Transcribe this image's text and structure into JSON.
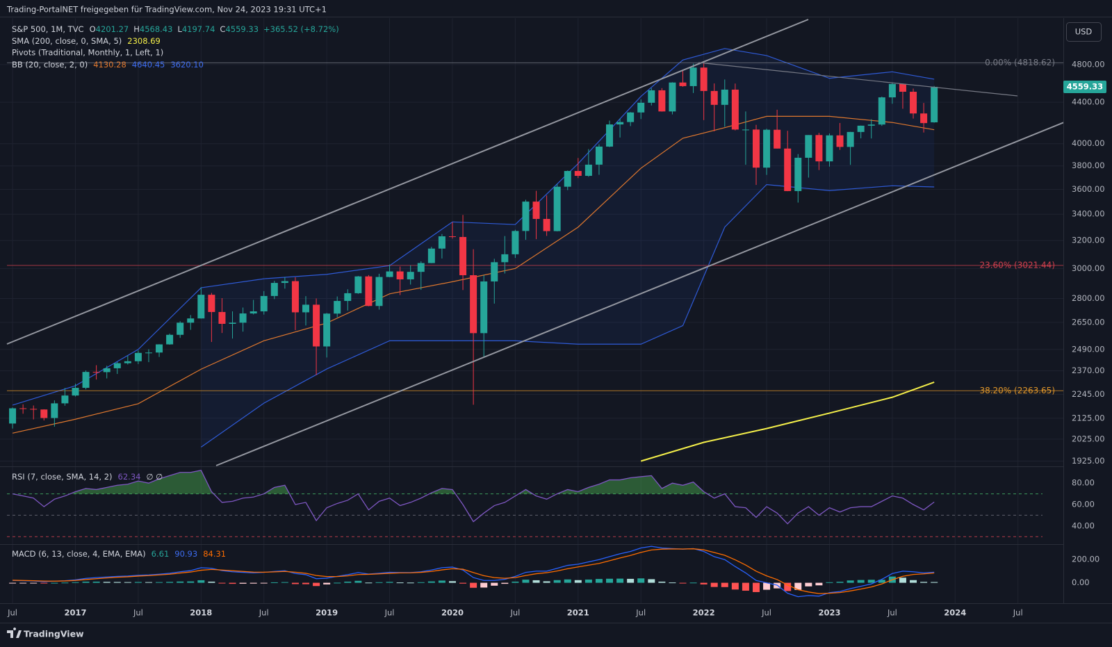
{
  "header": "Trading-PortalNET freigegeben für TradingView.com, Nov 24, 2023 19:31 UTC+1",
  "currency_button": "USD",
  "footer_logo": "TradingView",
  "chart_data": [
    {
      "type": "candlestick",
      "symbol": "S&P 500, 1M, TVC",
      "ohlc_labels": [
        "O",
        "H",
        "L",
        "C"
      ],
      "change": "+365.52 (+8.72%)",
      "up_color": "#26a69a",
      "down_color": "#f23645",
      "yscale": "log",
      "ylim": [
        1902,
        5342
      ],
      "xlim": [
        "2016-06",
        "2024-11"
      ],
      "grid": true,
      "yticks": [
        {
          "value": 4800,
          "label": "4800.00"
        },
        {
          "value": 4400,
          "label": "4400.00"
        },
        {
          "value": 4000,
          "label": "4000.00"
        },
        {
          "value": 3800,
          "label": "3800.00"
        },
        {
          "value": 3600,
          "label": "3600.00"
        },
        {
          "value": 3400,
          "label": "3400.00"
        },
        {
          "value": 3200,
          "label": "3200.00"
        },
        {
          "value": 3000,
          "label": "3000.00"
        },
        {
          "value": 2800,
          "label": "2800.00"
        },
        {
          "value": 2650,
          "label": "2650.00"
        },
        {
          "value": 2490,
          "label": "2490.00"
        },
        {
          "value": 2370,
          "label": "2370.00"
        },
        {
          "value": 2245,
          "label": "2245.00"
        },
        {
          "value": 2125,
          "label": "2125.00"
        },
        {
          "value": 2025,
          "label": "2025.00"
        },
        {
          "value": 1925,
          "label": "1925.00"
        }
      ],
      "xticks": [
        {
          "value": "2016-07",
          "label": "Jul"
        },
        {
          "value": "2017-01",
          "label": "2017"
        },
        {
          "value": "2017-07",
          "label": "Jul"
        },
        {
          "value": "2018-01",
          "label": "2018"
        },
        {
          "value": "2018-07",
          "label": "Jul"
        },
        {
          "value": "2019-01",
          "label": "2019"
        },
        {
          "value": "2019-07",
          "label": "Jul"
        },
        {
          "value": "2020-01",
          "label": "2020"
        },
        {
          "value": "2020-07",
          "label": "Jul"
        },
        {
          "value": "2021-01",
          "label": "2021"
        },
        {
          "value": "2021-07",
          "label": "Jul"
        },
        {
          "value": "2022-01",
          "label": "2022"
        },
        {
          "value": "2022-07",
          "label": "Jul"
        },
        {
          "value": "2023-01",
          "label": "2023"
        },
        {
          "value": "2023-07",
          "label": "Jul"
        },
        {
          "value": "2024-01",
          "label": "2024"
        },
        {
          "value": "2024-07",
          "label": "Jul"
        }
      ],
      "x": [
        "2016-07",
        "2016-08",
        "2016-09",
        "2016-10",
        "2016-11",
        "2016-12",
        "2017-01",
        "2017-02",
        "2017-03",
        "2017-04",
        "2017-05",
        "2017-06",
        "2017-07",
        "2017-08",
        "2017-09",
        "2017-10",
        "2017-11",
        "2017-12",
        "2018-01",
        "2018-02",
        "2018-03",
        "2018-04",
        "2018-05",
        "2018-06",
        "2018-07",
        "2018-08",
        "2018-09",
        "2018-10",
        "2018-11",
        "2018-12",
        "2019-01",
        "2019-02",
        "2019-03",
        "2019-04",
        "2019-05",
        "2019-06",
        "2019-07",
        "2019-08",
        "2019-09",
        "2019-10",
        "2019-11",
        "2019-12",
        "2020-01",
        "2020-02",
        "2020-03",
        "2020-04",
        "2020-05",
        "2020-06",
        "2020-07",
        "2020-08",
        "2020-09",
        "2020-10",
        "2020-11",
        "2020-12",
        "2021-01",
        "2021-02",
        "2021-03",
        "2021-04",
        "2021-05",
        "2021-06",
        "2021-07",
        "2021-08",
        "2021-09",
        "2021-10",
        "2021-11",
        "2021-12",
        "2022-01",
        "2022-02",
        "2022-03",
        "2022-04",
        "2022-05",
        "2022-06",
        "2022-07",
        "2022-08",
        "2022-09",
        "2022-10",
        "2022-11",
        "2022-12",
        "2023-01",
        "2023-02",
        "2023-03",
        "2023-04",
        "2023-05",
        "2023-06",
        "2023-07",
        "2023-08",
        "2023-09",
        "2023-10",
        "2023-11"
      ],
      "open": [
        2099,
        2174,
        2171,
        2168,
        2126,
        2199,
        2239,
        2279,
        2364,
        2363,
        2384,
        2412,
        2423,
        2470,
        2472,
        2519,
        2575,
        2648,
        2674,
        2824,
        2714,
        2641,
        2648,
        2705,
        2718,
        2816,
        2902,
        2914,
        2712,
        2760,
        2507,
        2704,
        2784,
        2834,
        2946,
        2752,
        2942,
        2980,
        2926,
        2977,
        3038,
        3141,
        3231,
        3226,
        2954,
        2585,
        2912,
        3044,
        3100,
        3271,
        3500,
        3363,
        3270,
        3622,
        3756,
        3714,
        3811,
        3973,
        4181,
        4204,
        4298,
        4395,
        4523,
        4308,
        4605,
        4567,
        4766,
        4516,
        4374,
        4530,
        4132,
        4132,
        3785,
        4130,
        3955,
        3586,
        3872,
        4080,
        3840,
        4077,
        3970,
        4109,
        4169,
        4180,
        4450,
        4589,
        4508,
        4288,
        4201.27
      ],
      "high": [
        2178,
        2194,
        2188,
        2169,
        2214,
        2278,
        2301,
        2372,
        2401,
        2398,
        2419,
        2454,
        2484,
        2491,
        2520,
        2582,
        2657,
        2695,
        2873,
        2836,
        2802,
        2718,
        2742,
        2791,
        2848,
        2916,
        2941,
        2940,
        2815,
        2800,
        2708,
        2813,
        2860,
        2949,
        2955,
        2964,
        3028,
        3014,
        3022,
        3050,
        3154,
        3248,
        3338,
        3394,
        3136,
        2955,
        3068,
        3233,
        3280,
        3515,
        3588,
        3550,
        3646,
        3760,
        3870,
        3950,
        3994,
        4218,
        4238,
        4302,
        4429,
        4546,
        4546,
        4608,
        4744,
        4809,
        4819,
        4595,
        4637,
        4594,
        4308,
        4177,
        4140,
        4325,
        4120,
        3905,
        4080,
        4101,
        4095,
        4195,
        4110,
        4170,
        4231,
        4458,
        4607,
        4594,
        4541,
        4393,
        4568.43
      ],
      "low": [
        2075,
        2147,
        2119,
        2114,
        2084,
        2187,
        2234,
        2271,
        2323,
        2329,
        2353,
        2405,
        2407,
        2418,
        2447,
        2517,
        2557,
        2605,
        2673,
        2533,
        2586,
        2553,
        2594,
        2699,
        2698,
        2796,
        2864,
        2603,
        2631,
        2347,
        2444,
        2681,
        2723,
        2830,
        2750,
        2729,
        2940,
        2822,
        2891,
        2856,
        3037,
        3070,
        3214,
        2855,
        2192,
        2448,
        2767,
        2966,
        3074,
        3205,
        3210,
        3234,
        3268,
        3594,
        3695,
        3706,
        3723,
        3968,
        4057,
        4165,
        4233,
        4368,
        4306,
        4279,
        4560,
        4495,
        4223,
        4115,
        4158,
        4124,
        3810,
        3637,
        3722,
        3955,
        3585,
        3492,
        3699,
        3764,
        3794,
        3943,
        3809,
        4049,
        4048,
        4167,
        4385,
        4335,
        4238,
        4104,
        4197.74
      ],
      "close": [
        2174,
        2171,
        2168,
        2126,
        2199,
        2239,
        2279,
        2364,
        2363,
        2384,
        2412,
        2423,
        2470,
        2472,
        2519,
        2575,
        2648,
        2674,
        2824,
        2714,
        2641,
        2648,
        2705,
        2718,
        2816,
        2902,
        2914,
        2712,
        2760,
        2507,
        2704,
        2784,
        2834,
        2946,
        2752,
        2942,
        2980,
        2926,
        2977,
        3038,
        3141,
        3231,
        3226,
        2954,
        2585,
        2912,
        3044,
        3100,
        3271,
        3500,
        3363,
        3270,
        3622,
        3756,
        3714,
        3811,
        3973,
        4181,
        4204,
        4298,
        4395,
        4523,
        4308,
        4605,
        4567,
        4766,
        4516,
        4374,
        4530,
        4132,
        4132,
        3785,
        4130,
        3955,
        3586,
        3872,
        4080,
        3840,
        4077,
        3970,
        4109,
        4169,
        4180,
        4450,
        4589,
        4508,
        4288,
        4194,
        4559.33
      ],
      "sma": {
        "name": "SMA (200, close, 0, SMA, 5)",
        "color": "#f5f04a",
        "x": [
          "2021-07",
          "2022-01",
          "2022-07",
          "2023-01",
          "2023-07",
          "2023-11"
        ],
        "values": [
          1925,
          2010,
          2075,
          2150,
          2230,
          2308.69
        ]
      },
      "pivots_label": "Pivots (Traditional, Monthly, 1, Left, 1)",
      "bb": {
        "name": "BB (20, close, 2, 0)",
        "fill": "rgba(41,98,255,0.07)",
        "x": [
          "2016-07",
          "2017-01",
          "2017-07",
          "2018-01",
          "2018-07",
          "2019-01",
          "2019-07",
          "2020-01",
          "2020-07",
          "2021-01",
          "2021-07",
          "2021-11",
          "2022-03",
          "2022-07",
          "2023-01",
          "2023-07",
          "2023-11"
        ],
        "basis": {
          "color": "#e0782e",
          "values": [
            2053,
            2120,
            2197,
            2379,
            2540,
            2646,
            2830,
            2910,
            3000,
            3300,
            3780,
            4050,
            4150,
            4260,
            4260,
            4200,
            4130.28
          ]
        },
        "upper": {
          "color": "#2f5bd8",
          "values": [
            2190,
            2290,
            2490,
            2870,
            2930,
            2960,
            3020,
            3340,
            3320,
            3820,
            4460,
            4850,
            4980,
            4900,
            4650,
            4720,
            4640.45
          ]
        },
        "lower": {
          "color": "#2f5bd8",
          "values": [
            null,
            null,
            null,
            1988,
            2200,
            2380,
            2540,
            2540,
            2540,
            2520,
            2520,
            2630,
            3300,
            3640,
            3590,
            3630,
            3620.1
          ],
          "value_labels": [
            null,
            null,
            null,
            null,
            null,
            null,
            null,
            null,
            null,
            null,
            null,
            null,
            null,
            null,
            null,
            null,
            "3620.10"
          ]
        }
      },
      "fib_levels": [
        {
          "label": "0.00% (4818.62)",
          "value": 4818.62,
          "color": "#787b86"
        },
        {
          "label": "23.60% (3021.44)",
          "value": 3021.44,
          "color": "#d1404e"
        },
        {
          "label": "38.20% (2263.65)",
          "value": 2263.65,
          "color": "#e0962a"
        }
      ]
    },
    {
      "type": "rsi",
      "name": "RSI (7, close, SMA, 14, 2)",
      "status": "∅ ∅",
      "color": "#7e57c2",
      "overbought_fill": "rgba(76,175,80,0.45)",
      "ylim": [
        23,
        95.7
      ],
      "yticks": [
        {
          "value": 80,
          "label": "80.00"
        },
        {
          "value": 60,
          "label": "60.00"
        },
        {
          "value": 40,
          "label": "40.00"
        }
      ],
      "levels": [
        {
          "value": 70,
          "color": "#3d9a5c"
        },
        {
          "value": 50,
          "color": "#5d606b"
        },
        {
          "value": 30,
          "color": "#b23a48"
        }
      ],
      "values": [
        70,
        68,
        66,
        58,
        65,
        68,
        72,
        75,
        74,
        76,
        78,
        79,
        82,
        80,
        84,
        87,
        90,
        90,
        92,
        72,
        62,
        63,
        66,
        67,
        70,
        76,
        78,
        60,
        62,
        45,
        57,
        61,
        64,
        70,
        55,
        63,
        66,
        59,
        62,
        66,
        71,
        75,
        74,
        60,
        44,
        52,
        59,
        62,
        68,
        74,
        68,
        65,
        70,
        74,
        72,
        76,
        79,
        83,
        83,
        85,
        86,
        87,
        75,
        80,
        78,
        81,
        72,
        66,
        70,
        58,
        57,
        48,
        58,
        52,
        42,
        52,
        58,
        50,
        57,
        53,
        57,
        58,
        58,
        63,
        68,
        66,
        60,
        55,
        62.34
      ]
    },
    {
      "type": "macd",
      "name": "MACD (6, 13, close, 4, EMA, EMA)",
      "ylim": [
        -176,
        333
      ],
      "yticks": [
        {
          "value": 200,
          "label": "200.00"
        },
        {
          "value": 0,
          "label": "0.00"
        }
      ],
      "macd_color": "#2962ff",
      "signal_color": "#ff6d00",
      "hist_colors": {
        "up": "#26a69a",
        "up_falling": "#b2dfdb",
        "down": "#ff5252",
        "down_rising": "#ffcdd2"
      },
      "histogram": [
        -2,
        -2,
        -2,
        -5,
        0,
        2,
        5,
        10,
        10,
        8,
        7,
        6,
        7,
        6,
        6,
        8,
        11,
        12,
        22,
        10,
        -5,
        -9,
        -8,
        -7,
        -1,
        4,
        6,
        -11,
        -12,
        -28,
        -14,
        1,
        10,
        17,
        2,
        5,
        8,
        3,
        2,
        5,
        12,
        19,
        14,
        -7,
        -43,
        -41,
        -25,
        -9,
        10,
        27,
        22,
        13,
        23,
        29,
        23,
        28,
        33,
        35,
        36,
        34,
        38,
        31,
        10,
        3,
        -1,
        2,
        -14,
        -36,
        -37,
        -58,
        -68,
        -80,
        -60,
        -48,
        -71,
        -61,
        -31,
        -22,
        5,
        9,
        20,
        24,
        26,
        26,
        54,
        44,
        23,
        8,
        6.61
      ],
      "macd": [
        20,
        18,
        16,
        10,
        14,
        18,
        25,
        38,
        45,
        50,
        55,
        58,
        65,
        68,
        74,
        82,
        95,
        105,
        130,
        125,
        105,
        95,
        90,
        85,
        90,
        98,
        104,
        80,
        70,
        35,
        40,
        55,
        70,
        88,
        75,
        82,
        90,
        88,
        88,
        95,
        110,
        130,
        135,
        110,
        45,
        20,
        20,
        30,
        55,
        90,
        100,
        100,
        125,
        150,
        160,
        180,
        200,
        225,
        250,
        270,
        300,
        314,
        300,
        295,
        290,
        295,
        270,
        225,
        200,
        140,
        85,
        20,
        0,
        -20,
        -90,
        -120,
        -110,
        -115,
        -85,
        -75,
        -50,
        -30,
        -10,
        30,
        80,
        100,
        95,
        85,
        90.93
      ],
      "signal": [
        22,
        20,
        18,
        15,
        14,
        16,
        20,
        28,
        35,
        42,
        48,
        52,
        58,
        62,
        68,
        74,
        84,
        93,
        108,
        115,
        110,
        104,
        98,
        92,
        91,
        94,
        98,
        91,
        82,
        63,
        54,
        54,
        60,
        71,
        73,
        77,
        82,
        85,
        86,
        90,
        98,
        111,
        121,
        117,
        88,
        61,
        45,
        39,
        45,
        63,
        78,
        87,
        102,
        121,
        137,
        152,
        167,
        190,
        214,
        236,
        262,
        283,
        290,
        292,
        291,
        293,
        284,
        261,
        237,
        198,
        153,
        100,
        60,
        28,
        -19,
        -59,
        -79,
        -93,
        -90,
        -84,
        -70,
        -54,
        -36,
        -10,
        26,
        56,
        72,
        77,
        84.31
      ]
    }
  ]
}
